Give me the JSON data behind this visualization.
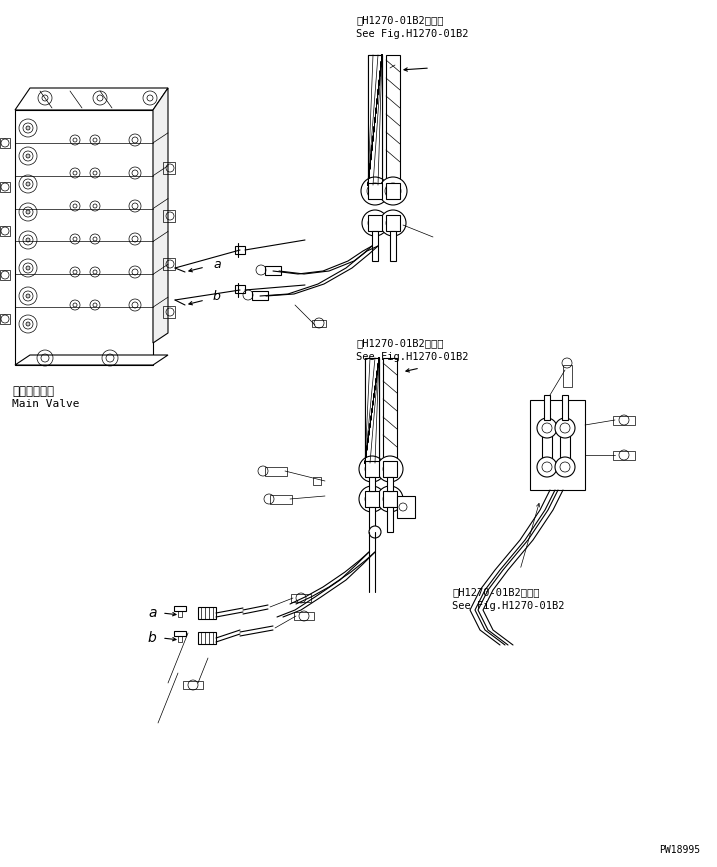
{
  "bg_color": "#ffffff",
  "line_color": "#000000",
  "text_color": "#000000",
  "fig_width": 7.17,
  "fig_height": 8.67,
  "dpi": 100,
  "watermark": "PW18995",
  "label_ref1_jp": "第H1270-01B2図参照",
  "label_ref1_en": "See Fig.H1270-01B2",
  "label_ref2_jp": "第H1270-01B2図参照",
  "label_ref2_en": "See Fig.H1270-01B2",
  "label_ref3_jp": "第H1270-01B2図参照",
  "label_ref3_en": "See Fig.H1270-01B2",
  "label_main_valve_jp": "メインバルブ",
  "label_main_valve_en": "Main Valve",
  "label_a": "a",
  "label_b": "b",
  "font_size_ref": 7,
  "font_size_label": 7.5,
  "font_size_watermark": 7,
  "font_size_ab": 9
}
